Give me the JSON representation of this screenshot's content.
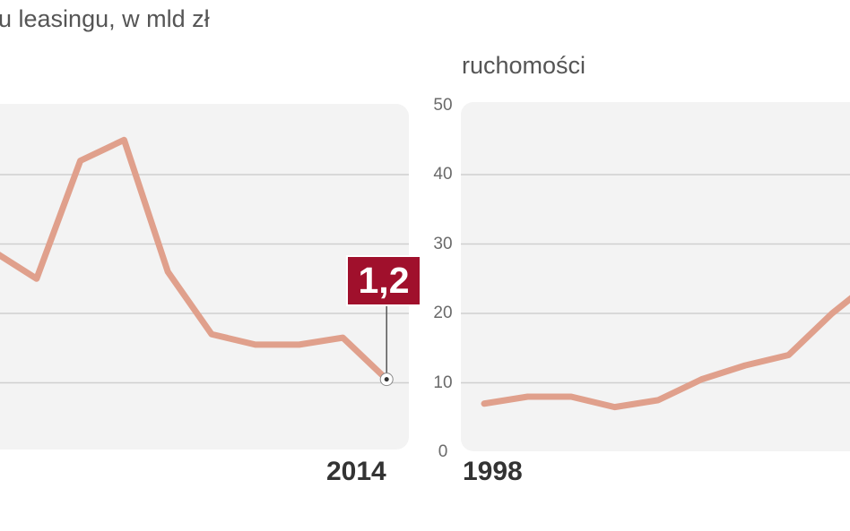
{
  "chart_data": [
    {
      "type": "line",
      "title": "u leasingu, w mld zł",
      "x_end_label": "2014",
      "values": [
        29,
        25,
        42,
        45,
        26,
        17,
        15.5,
        15.5,
        16.5,
        10.5
      ],
      "ylim": [
        0,
        50
      ],
      "yticks": [],
      "annotation": {
        "text": "1,2",
        "index": 9
      },
      "line_color": "#e0a08c",
      "annotation_color": "#a0102c",
      "grid": true
    },
    {
      "type": "line",
      "title": "ruchomości",
      "x_start_label": "1998",
      "values": [
        7,
        8,
        8,
        6.5,
        7.5,
        10.5,
        12.5,
        14,
        20,
        25
      ],
      "ylim": [
        0,
        50
      ],
      "yticks": [
        "0",
        "10",
        "20",
        "30",
        "40",
        "50"
      ],
      "line_color": "#e0a08c",
      "grid": true
    }
  ]
}
